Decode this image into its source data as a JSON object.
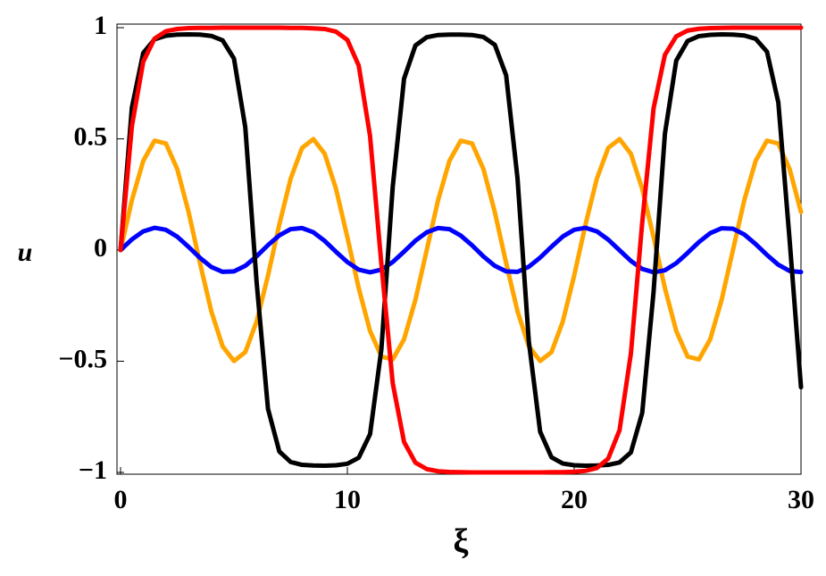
{
  "chart_data": {
    "type": "line",
    "xlabel": "ξ",
    "ylabel": "u",
    "x": [
      0,
      0.5,
      1,
      1.5,
      2,
      2.5,
      3,
      3.5,
      4,
      4.5,
      5,
      5.5,
      6,
      6.5,
      7,
      7.5,
      8,
      8.5,
      9,
      9.5,
      10,
      10.5,
      11,
      11.5,
      12,
      12.5,
      13,
      13.5,
      14,
      14.5,
      15,
      15.5,
      16,
      16.5,
      17,
      17.5,
      18,
      18.5,
      19,
      19.5,
      20,
      20.5,
      21,
      21.5,
      22,
      22.5,
      23,
      23.5,
      24,
      24.5,
      25,
      25.5,
      26,
      26.5,
      27,
      27.5,
      28,
      28.5,
      29,
      29.5,
      30
    ],
    "series": [
      {
        "color": "#ffa500",
        "values": [
          0,
          0.224,
          0.401,
          0.492,
          0.479,
          0.364,
          0.171,
          -0.058,
          -0.275,
          -0.433,
          -0.499,
          -0.459,
          -0.321,
          -0.115,
          0.115,
          0.321,
          0.459,
          0.499,
          0.433,
          0.275,
          0.058,
          -0.171,
          -0.364,
          -0.479,
          -0.492,
          -0.401,
          -0.224,
          0,
          0.224,
          0.401,
          0.492,
          0.479,
          0.364,
          0.171,
          -0.058,
          -0.275,
          -0.433,
          -0.499,
          -0.459,
          -0.321,
          -0.115,
          0.115,
          0.321,
          0.459,
          0.499,
          0.433,
          0.275,
          0.058,
          -0.171,
          -0.364,
          -0.479,
          -0.492,
          -0.401,
          -0.224,
          0,
          0.224,
          0.401,
          0.492,
          0.479,
          0.364,
          0.171
        ]
      },
      {
        "color": "#0000ff",
        "values": [
          0,
          0.048,
          0.084,
          0.1,
          0.091,
          0.06,
          0.014,
          -0.035,
          -0.076,
          -0.098,
          -0.096,
          -0.071,
          -0.028,
          0.022,
          0.066,
          0.094,
          0.099,
          0.08,
          0.041,
          -0.008,
          -0.054,
          -0.088,
          -0.1,
          -0.088,
          -0.054,
          -0.007,
          0.042,
          0.08,
          0.099,
          0.094,
          0.065,
          0.021,
          -0.029,
          -0.071,
          -0.096,
          -0.098,
          -0.075,
          -0.034,
          0.015,
          0.061,
          0.091,
          0.1,
          0.084,
          0.047,
          -0.001,
          -0.049,
          -0.085,
          -0.1,
          -0.091,
          -0.059,
          -0.013,
          0.036,
          0.076,
          0.098,
          0.096,
          0.07,
          0.027,
          -0.022,
          -0.066,
          -0.094,
          -0.099
        ]
      },
      {
        "color": "#000000",
        "values": [
          0,
          0.641,
          0.886,
          0.948,
          0.964,
          0.969,
          0.97,
          0.969,
          0.963,
          0.943,
          0.861,
          0.552,
          -0.146,
          -0.714,
          -0.906,
          -0.953,
          -0.966,
          -0.969,
          -0.97,
          -0.968,
          -0.961,
          -0.934,
          -0.828,
          -0.446,
          0.285,
          0.771,
          0.92,
          0.957,
          0.967,
          0.969,
          0.969,
          0.967,
          0.958,
          0.923,
          0.786,
          0.324,
          -0.411,
          -0.817,
          -0.932,
          -0.96,
          -0.968,
          -0.97,
          -0.969,
          -0.966,
          -0.955,
          -0.91,
          -0.732,
          -0.188,
          0.523,
          0.852,
          0.94,
          0.962,
          0.968,
          0.97,
          0.969,
          0.965,
          0.95,
          0.892,
          0.664,
          0.043,
          -0.617
        ]
      },
      {
        "color": "#ff0000",
        "values": [
          0,
          0.557,
          0.847,
          0.951,
          0.984,
          0.994,
          0.998,
          0.999,
          0.999,
          1,
          1,
          1,
          1,
          1,
          1,
          0.999,
          0.999,
          0.997,
          0.994,
          0.982,
          0.945,
          0.83,
          0.513,
          -0.063,
          -0.599,
          -0.863,
          -0.956,
          -0.985,
          -0.995,
          -0.998,
          -0.999,
          -1,
          -1,
          -1,
          -1,
          -1,
          -1,
          -1,
          -0.999,
          -0.999,
          -0.997,
          -0.993,
          -0.98,
          -0.938,
          -0.81,
          -0.466,
          0.124,
          0.637,
          0.878,
          0.961,
          0.987,
          0.995,
          0.998,
          0.999,
          1,
          1,
          1,
          1,
          1,
          1,
          1
        ]
      }
    ],
    "xlim": [
      0,
      30
    ],
    "ylim": [
      -1,
      1
    ],
    "xticks": [
      0,
      10,
      20,
      30
    ],
    "yticks": [
      {
        "value": -1,
        "label": "−1"
      },
      {
        "value": -0.5,
        "label": "−0.5"
      },
      0,
      0.5,
      1
    ]
  }
}
